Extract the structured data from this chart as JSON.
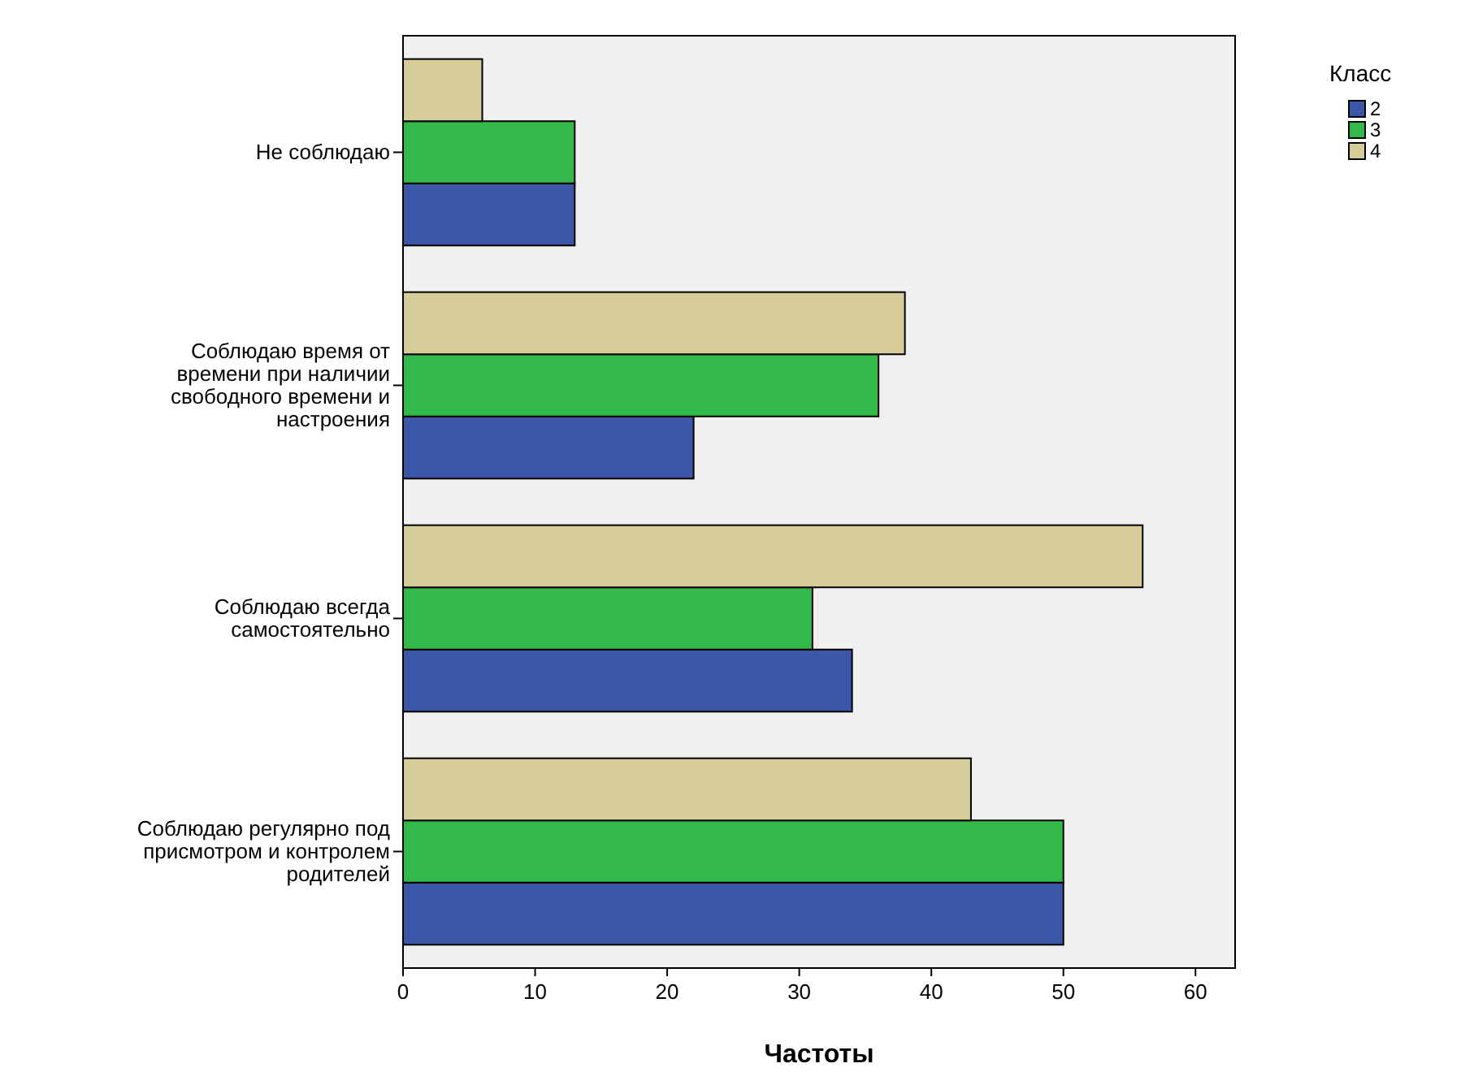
{
  "chart_data": {
    "type": "bar",
    "orientation": "horizontal",
    "xlabel": "Частоты",
    "legend_title": "Класс",
    "legend": "top right",
    "categories": [
      "Не соблюдаю",
      "Соблюдаю время от времени при наличии свободного времени и настроения",
      "Соблюдаю всегда самостоятельно",
      "Соблюдаю регулярно под присмотром и контролем родителей"
    ],
    "series": [
      {
        "name": "2",
        "color": "#3c56a8",
        "values": [
          13,
          22,
          34,
          50
        ]
      },
      {
        "name": "3",
        "color": "#33b94a",
        "values": [
          13,
          36,
          31,
          50
        ]
      },
      {
        "name": "4",
        "color": "#d5cc9a",
        "values": [
          6,
          38,
          56,
          43
        ]
      }
    ],
    "xlim": [
      0,
      63
    ],
    "xticks": [
      0,
      10,
      20,
      30,
      40,
      50,
      60
    ],
    "grid": false
  }
}
